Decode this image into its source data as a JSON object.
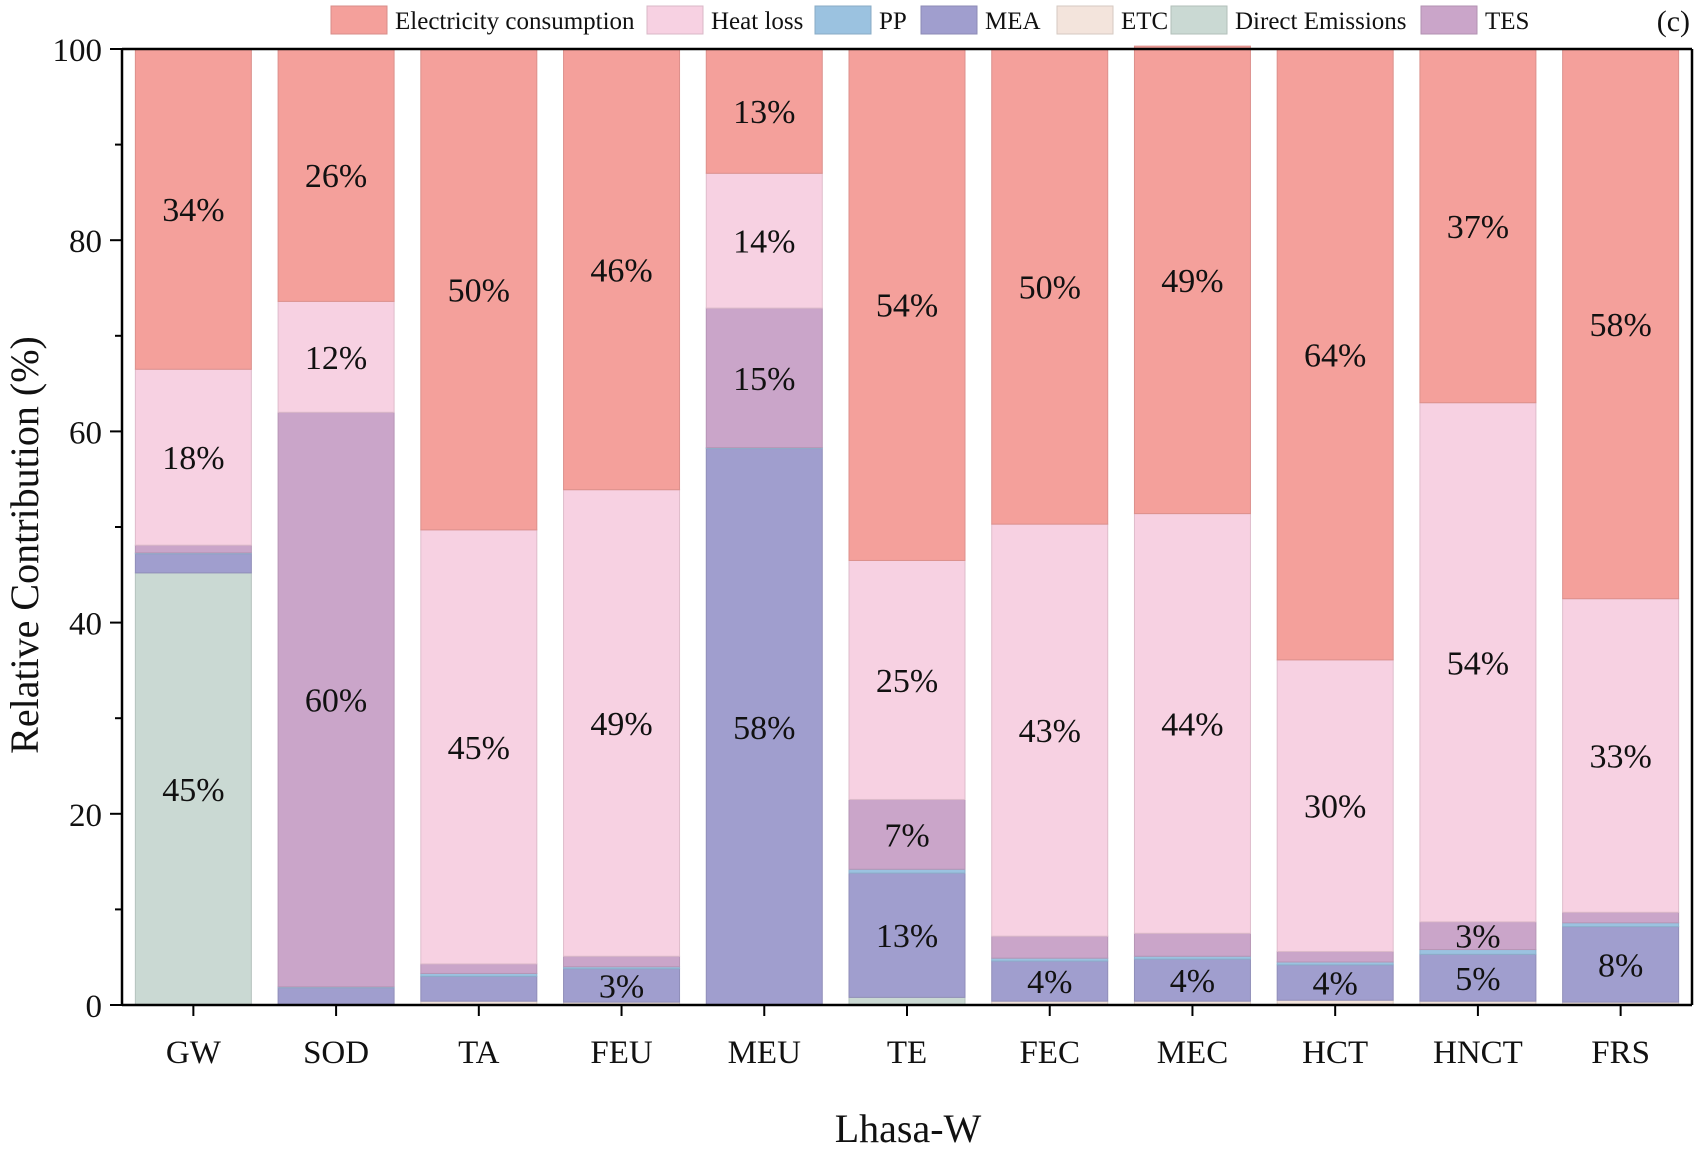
{
  "chart_data": {
    "type": "bar",
    "stacked": true,
    "panel_label": "(c)",
    "xlabel": "Lhasa-W",
    "ylabel": "Relative Contribution (%)",
    "ylim": [
      0,
      100
    ],
    "yticks": [
      0,
      20,
      40,
      60,
      80,
      100
    ],
    "grid": false,
    "legend_position": "top",
    "categories": [
      "GW",
      "SOD",
      "TA",
      "FEU",
      "MEU",
      "TE",
      "FEC",
      "MEC",
      "HCT",
      "HNCT",
      "FRS"
    ],
    "series": [
      {
        "name": "Direct Emissions",
        "color": "#cad9d3",
        "values": [
          45.2,
          0,
          0,
          0,
          0,
          0.8,
          0,
          0,
          0,
          0,
          0
        ],
        "labels": [
          "45%",
          "",
          "",
          "",
          "",
          "",
          "",
          "",
          "",
          "",
          ""
        ]
      },
      {
        "name": "ETC",
        "color": "#f3e4dc",
        "values": [
          0,
          0,
          0.4,
          0.3,
          0,
          0,
          0.4,
          0.4,
          0.5,
          0.4,
          0.3
        ],
        "labels": [
          "",
          "",
          "",
          "",
          "",
          "",
          "",
          "",
          "",
          "",
          ""
        ]
      },
      {
        "name": "MEA",
        "color": "#a09ece",
        "values": [
          2.0,
          1.8,
          2.6,
          3.5,
          58.2,
          13.0,
          4.2,
          4.4,
          3.7,
          4.9,
          7.9
        ],
        "labels": [
          "",
          "",
          "",
          "3%",
          "58%",
          "13%",
          "4%",
          "4%",
          "4%",
          "5%",
          "8%"
        ]
      },
      {
        "name": "PP",
        "color": "#9bc2e0",
        "values": [
          0.1,
          0.1,
          0.3,
          0.2,
          0.1,
          0.4,
          0.3,
          0.3,
          0.3,
          0.5,
          0.4
        ],
        "labels": [
          "",
          "",
          "",
          "",
          "",
          "",
          "",
          "",
          "",
          "",
          ""
        ]
      },
      {
        "name": "TES",
        "color": "#caa5c9",
        "values": [
          0.8,
          60.1,
          1.0,
          1.1,
          14.6,
          7.3,
          2.3,
          2.4,
          1.1,
          2.9,
          1.1
        ],
        "labels": [
          "",
          "60%",
          "",
          "",
          "15%",
          "7%",
          "",
          "",
          "",
          "3%",
          ""
        ]
      },
      {
        "name": "Heat loss",
        "color": "#f7d1e2",
        "values": [
          18.4,
          11.6,
          45.4,
          48.8,
          14.1,
          25.0,
          43.1,
          43.9,
          30.5,
          54.3,
          32.8
        ],
        "labels": [
          "18%",
          "12%",
          "45%",
          "49%",
          "14%",
          "25%",
          "43%",
          "44%",
          "30%",
          "54%",
          "33%"
        ]
      },
      {
        "name": "Electricity consumption",
        "color": "#f4a09b",
        "values": [
          33.5,
          26.4,
          50.3,
          46.1,
          13.0,
          53.5,
          49.7,
          48.9,
          63.9,
          37.0,
          57.5
        ],
        "labels": [
          "34%",
          "26%",
          "50%",
          "46%",
          "13%",
          "54%",
          "50%",
          "49%",
          "64%",
          "37%",
          "58%"
        ]
      }
    ],
    "legend_order": [
      "Electricity consumption",
      "Heat loss",
      "PP",
      "MEA",
      "ETC",
      "Direct Emissions",
      "TES"
    ]
  }
}
